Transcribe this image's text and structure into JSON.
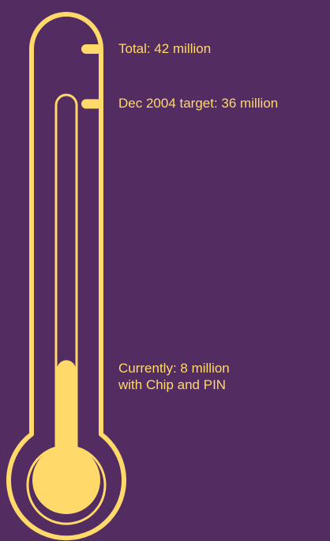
{
  "colors": {
    "background": "#532c61",
    "accent": "#ffd96a"
  },
  "chart_data": {
    "type": "thermometer",
    "unit": "million",
    "max": 42,
    "target": 36,
    "current": 8,
    "labels": {
      "total": "Total: 42 million",
      "target": "Dec 2004 target: 36 million",
      "current_line1": "Currently: 8 million",
      "current_line2": "with Chip and PIN"
    }
  }
}
